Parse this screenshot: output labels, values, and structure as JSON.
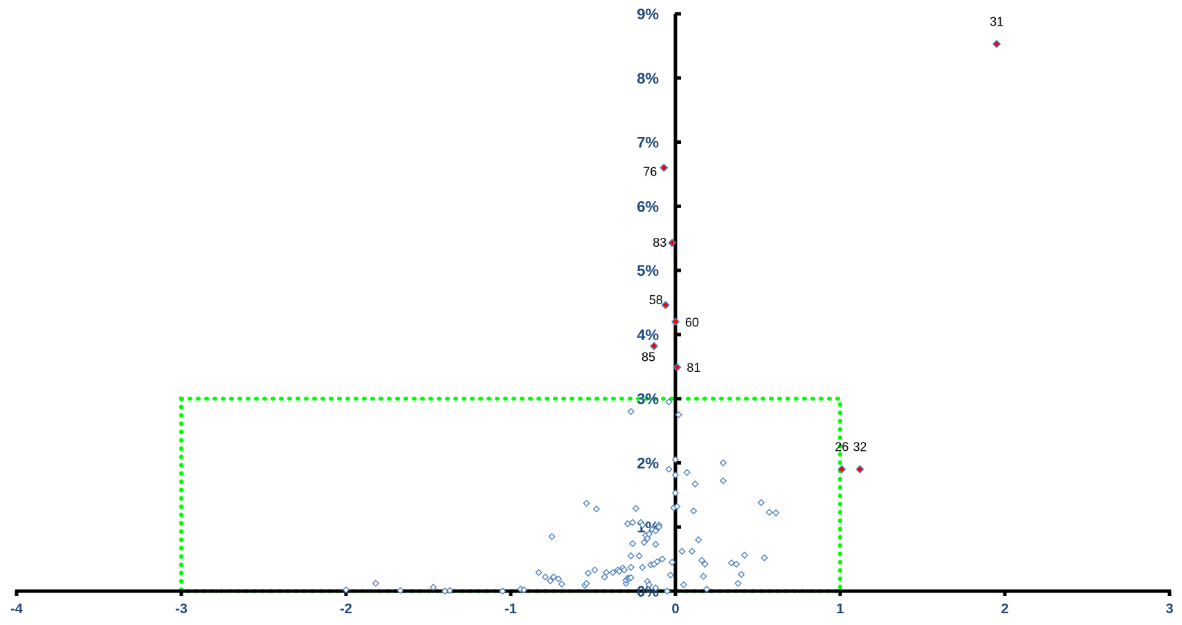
{
  "chart_data": {
    "type": "scatter",
    "title": "",
    "xlabel": "",
    "ylabel": "",
    "xlim": [
      -4,
      3
    ],
    "ylim": [
      0,
      9
    ],
    "x_ticks": [
      -4,
      -3,
      -2,
      -1,
      0,
      1,
      2,
      3
    ],
    "x_tick_labels": [
      "-4",
      "-3",
      "-2",
      "-1",
      "0",
      "1",
      "2",
      "3"
    ],
    "y_ticks": [
      0,
      1,
      2,
      3,
      4,
      5,
      6,
      7,
      8,
      9
    ],
    "y_tick_labels": [
      "0%",
      "1%",
      "2%",
      "3%",
      "4%",
      "5%",
      "6%",
      "7%",
      "8%",
      "9%"
    ],
    "grid": false,
    "legend": "none",
    "colors": {
      "axis": "#000000",
      "tick_label": "#1f497d",
      "normal_marker": "#4f81bd",
      "highlight_fill": "#ff0000",
      "highlight_edge": "#4f81bd",
      "region_border": "#00ff00"
    },
    "region": {
      "x": [
        -3,
        1
      ],
      "y": [
        0,
        3
      ],
      "style": "dotted"
    },
    "series": [
      {
        "marker": "diamond-outline",
        "points": [
          [
            -2.0,
            0.02
          ],
          [
            -1.82,
            0.12
          ],
          [
            -1.67,
            0.01
          ],
          [
            -1.47,
            0.06
          ],
          [
            -1.4,
            0.0
          ],
          [
            -1.37,
            0.01
          ],
          [
            -1.05,
            0.0
          ],
          [
            -0.94,
            0.03
          ],
          [
            -0.92,
            0.02
          ],
          [
            -0.83,
            0.29
          ],
          [
            -0.79,
            0.22
          ],
          [
            -0.76,
            0.16
          ],
          [
            -0.75,
            0.85
          ],
          [
            -0.74,
            0.22
          ],
          [
            -0.71,
            0.19
          ],
          [
            -0.69,
            0.11
          ],
          [
            -0.55,
            0.09
          ],
          [
            -0.54,
            0.12
          ],
          [
            -0.54,
            1.37
          ],
          [
            -0.53,
            0.28
          ],
          [
            -0.48,
            1.28
          ],
          [
            -0.49,
            0.33
          ],
          [
            -0.43,
            0.22
          ],
          [
            -0.42,
            0.29
          ],
          [
            -0.38,
            0.29
          ],
          [
            -0.35,
            0.33
          ],
          [
            -0.34,
            0.31
          ],
          [
            -0.32,
            0.36
          ],
          [
            -0.31,
            0.33
          ],
          [
            -0.3,
            0.12
          ],
          [
            -0.3,
            0.17
          ],
          [
            -0.29,
            1.05
          ],
          [
            -0.29,
            0.2
          ],
          [
            -0.28,
            0.2
          ],
          [
            -0.27,
            0.21
          ],
          [
            -0.27,
            2.8
          ],
          [
            -0.27,
            0.55
          ],
          [
            -0.27,
            0.37
          ],
          [
            -0.26,
            0.74
          ],
          [
            -0.26,
            1.07
          ],
          [
            -0.24,
            1.29
          ],
          [
            -0.22,
            0.55
          ],
          [
            -0.21,
            1.07
          ],
          [
            -0.2,
            1.03
          ],
          [
            -0.2,
            0.37
          ],
          [
            -0.19,
            0.76
          ],
          [
            -0.18,
            0.87
          ],
          [
            -0.17,
            0.82
          ],
          [
            -0.17,
            0.15
          ],
          [
            -0.16,
            0.89
          ],
          [
            -0.16,
            0.1
          ],
          [
            -0.15,
            0.41
          ],
          [
            -0.14,
            0.96
          ],
          [
            -0.13,
            0.42
          ],
          [
            -0.12,
            0.73
          ],
          [
            -0.12,
            0.94
          ],
          [
            -0.12,
            0.05
          ],
          [
            -0.11,
            0.46
          ],
          [
            -0.1,
            1.03
          ],
          [
            -0.1,
            1.0
          ],
          [
            -0.08,
            0.5
          ],
          [
            -0.05,
            0.0
          ],
          [
            -0.04,
            1.9
          ],
          [
            -0.04,
            2.95
          ],
          [
            -0.03,
            0.25
          ],
          [
            -0.02,
            0.45
          ],
          [
            -0.01,
            1.3
          ],
          [
            0.0,
            2.05
          ],
          [
            0.0,
            1.81
          ],
          [
            0.0,
            1.53
          ],
          [
            0.01,
            1.32
          ],
          [
            0.02,
            2.75
          ],
          [
            0.04,
            0.62
          ],
          [
            0.05,
            0.1
          ],
          [
            0.07,
            1.85
          ],
          [
            0.1,
            0.62
          ],
          [
            0.11,
            1.25
          ],
          [
            0.12,
            1.67
          ],
          [
            0.14,
            0.8
          ],
          [
            0.16,
            0.48
          ],
          [
            0.17,
            0.23
          ],
          [
            0.18,
            0.42
          ],
          [
            0.19,
            0.03
          ],
          [
            0.29,
            2.0
          ],
          [
            0.29,
            1.72
          ],
          [
            0.34,
            0.44
          ],
          [
            0.37,
            0.42
          ],
          [
            0.38,
            0.12
          ],
          [
            0.4,
            0.26
          ],
          [
            0.42,
            0.56
          ],
          [
            0.52,
            1.38
          ],
          [
            0.54,
            0.52
          ],
          [
            0.57,
            1.23
          ],
          [
            0.61,
            1.22
          ]
        ]
      },
      {
        "marker": "diamond-filled",
        "points": [
          {
            "id": "31",
            "x": 1.95,
            "y": 8.53
          },
          {
            "id": "76",
            "x": -0.07,
            "y": 6.6
          },
          {
            "id": "83",
            "x": -0.02,
            "y": 5.43
          },
          {
            "id": "58",
            "x": -0.06,
            "y": 4.46
          },
          {
            "id": "60",
            "x": 0.0,
            "y": 4.2
          },
          {
            "id": "85",
            "x": -0.13,
            "y": 3.82
          },
          {
            "id": "81",
            "x": 0.01,
            "y": 3.49
          },
          {
            "id": "26",
            "x": 1.01,
            "y": 1.9
          },
          {
            "id": "32",
            "x": 1.12,
            "y": 1.9
          }
        ]
      }
    ]
  }
}
